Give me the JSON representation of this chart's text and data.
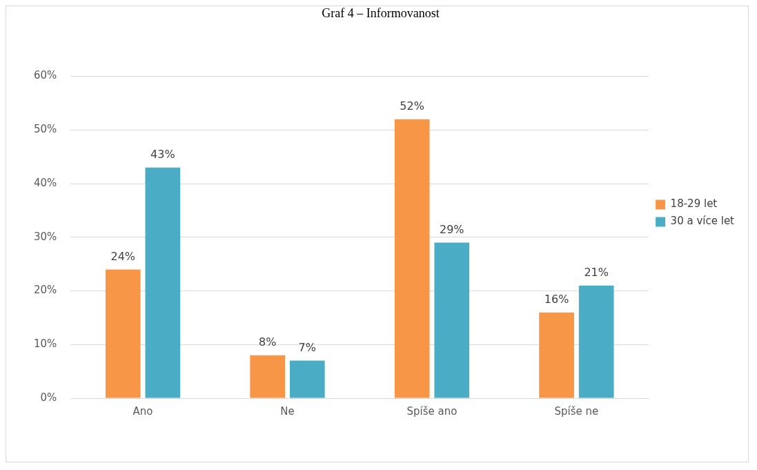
{
  "chart_data": {
    "type": "bar",
    "title": "Graf 4 – Informovanost",
    "categories": [
      "Ano",
      "Ne",
      "Spíše ano",
      "Spíše ne"
    ],
    "series": [
      {
        "name": "18-29 let",
        "color": "#f79646",
        "values": [
          24,
          8,
          52,
          16
        ],
        "value_labels": [
          "24%",
          "8%",
          "52%",
          "16%"
        ]
      },
      {
        "name": "30 a více let",
        "color": "#4bacc6",
        "values": [
          43,
          7,
          29,
          21
        ],
        "value_labels": [
          "43%",
          "7%",
          "29%",
          "21%"
        ]
      }
    ],
    "ylim": [
      0,
      60
    ],
    "yticks": [
      {
        "value": 0,
        "label": "0%"
      },
      {
        "value": 10,
        "label": "10%"
      },
      {
        "value": 20,
        "label": "20%"
      },
      {
        "value": 30,
        "label": "30%"
      },
      {
        "value": 40,
        "label": "40%"
      },
      {
        "value": 50,
        "label": "50%"
      },
      {
        "value": 60,
        "label": "60%"
      }
    ],
    "grid": "y",
    "legend": "right"
  }
}
